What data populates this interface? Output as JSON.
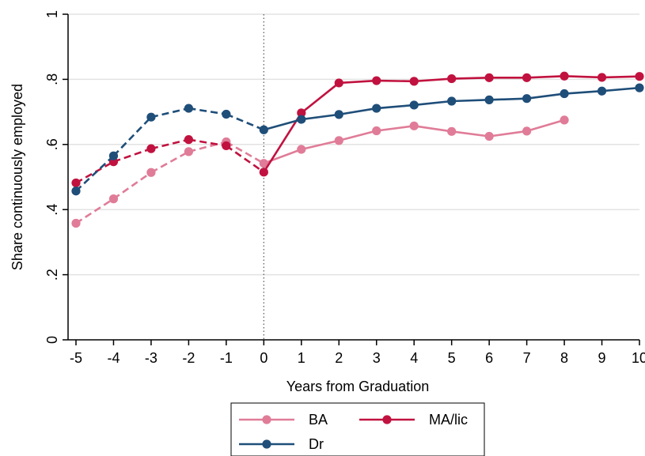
{
  "chart_data": {
    "type": "line",
    "title": "",
    "xlabel": "Years from Graduation",
    "ylabel": "Share continuously employed",
    "xlim": [
      -5,
      10
    ],
    "ylim": [
      0,
      1
    ],
    "x_ticks": [
      -5,
      -4,
      -3,
      -2,
      -1,
      0,
      1,
      2,
      3,
      4,
      5,
      6,
      7,
      8,
      9,
      10
    ],
    "x_tick_labels": [
      "-5",
      "-4",
      "-3",
      "-2",
      "-1",
      "0",
      "1",
      "2",
      "3",
      "4",
      "5",
      "6",
      "7",
      "8",
      "9",
      "10"
    ],
    "y_ticks": [
      0,
      0.2,
      0.4,
      0.6,
      0.8,
      1
    ],
    "y_tick_labels": [
      "0",
      ".2",
      ".4",
      ".6",
      ".8",
      "1"
    ],
    "grid": true,
    "vertical_reference_line": 0,
    "pre_period_style": "dashed",
    "post_period_style": "solid",
    "legend_position": "bottom",
    "series": [
      {
        "name": "BA",
        "color": "#e07c98",
        "x": [
          -5,
          -4,
          -3,
          -2,
          -1,
          0,
          1,
          2,
          3,
          4,
          5,
          6,
          7,
          8
        ],
        "y": [
          0.358,
          0.433,
          0.514,
          0.578,
          0.608,
          0.542,
          0.585,
          0.612,
          0.642,
          0.657,
          0.64,
          0.625,
          0.641,
          0.675
        ]
      },
      {
        "name": "MA/lic",
        "color": "#c1123f",
        "x": [
          -5,
          -4,
          -3,
          -2,
          -1,
          0,
          1,
          2,
          3,
          4,
          5,
          6,
          7,
          8,
          9,
          10
        ],
        "y": [
          0.482,
          0.547,
          0.587,
          0.615,
          0.596,
          0.515,
          0.697,
          0.789,
          0.796,
          0.794,
          0.802,
          0.805,
          0.805,
          0.81,
          0.806,
          0.809
        ]
      },
      {
        "name": "Dr",
        "color": "#1f4e79",
        "x": [
          -5,
          -4,
          -3,
          -2,
          -1,
          0,
          1,
          2,
          3,
          4,
          5,
          6,
          7,
          8,
          9,
          10
        ],
        "y": [
          0.457,
          0.565,
          0.684,
          0.711,
          0.693,
          0.645,
          0.677,
          0.692,
          0.711,
          0.721,
          0.733,
          0.737,
          0.741,
          0.756,
          0.764,
          0.774
        ]
      }
    ]
  }
}
